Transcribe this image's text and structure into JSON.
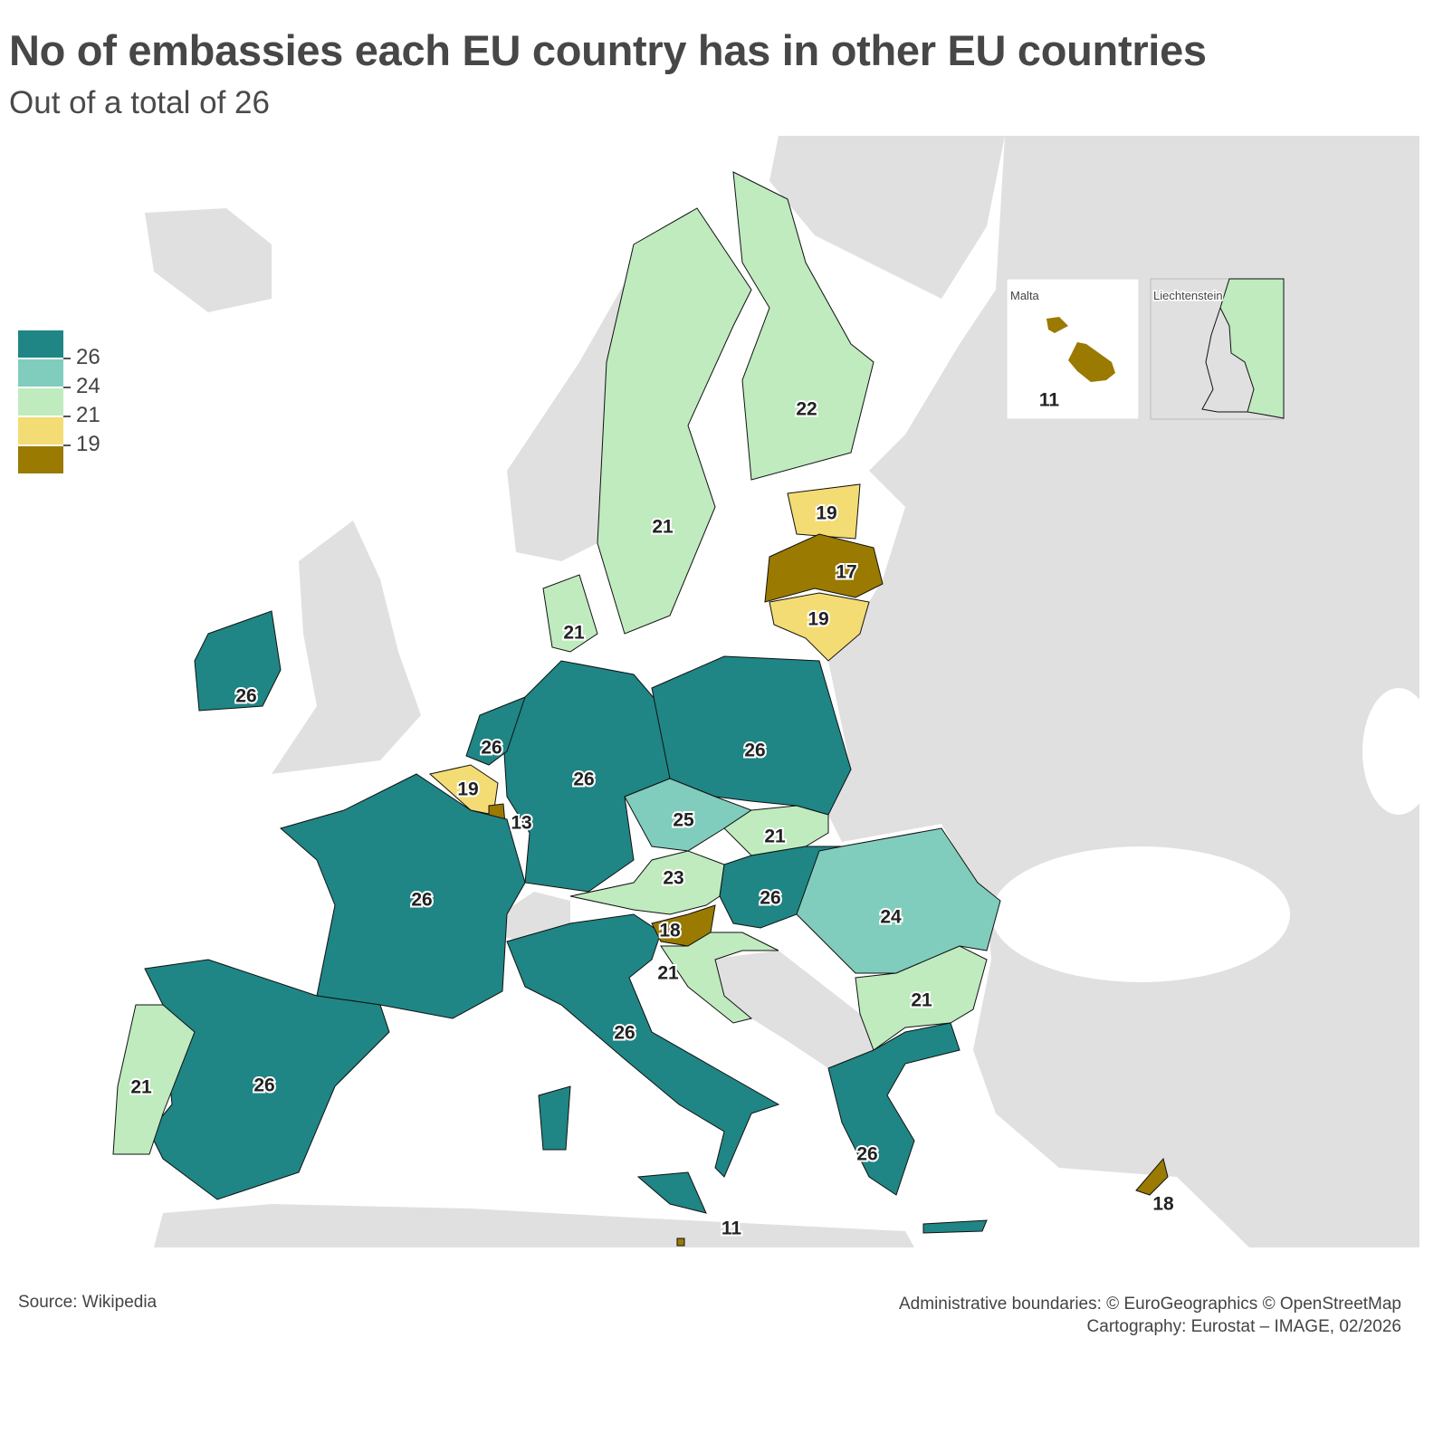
{
  "title": "No of embassies each EU country has in other EU countries",
  "subtitle": "Out of a total of 26",
  "colors": {
    "c26": "#1f8585",
    "c24": "#80cdbd",
    "c21": "#bfebbf",
    "c19": "#f4dc74",
    "clow": "#9a7a00",
    "nonEU": "#e0e0e0"
  },
  "legend": {
    "breaks": [
      "26",
      "24",
      "21",
      "19"
    ]
  },
  "map": {
    "values": {
      "ireland": "26",
      "sweden": "21",
      "finland": "22",
      "estonia": "19",
      "latvia": "17",
      "lithuania": "19",
      "denmark": "21",
      "germany": "26",
      "poland": "26",
      "netherlands": "26",
      "belgium": "19",
      "luxembourg": "13",
      "france": "26",
      "spain": "26",
      "portugal": "21",
      "italy": "26",
      "czechia": "25",
      "slovakia": "21",
      "austria": "23",
      "hungary": "26",
      "slovenia": "18",
      "croatia": "21",
      "romania": "24",
      "bulgaria": "21",
      "greece": "26",
      "cyprus": "18",
      "malta": "11"
    },
    "insets": {
      "malta_title": "Malta",
      "malta_value": "11",
      "liechtenstein_title": "Liechtenstein"
    }
  },
  "footer": {
    "source": "Source: Wikipedia",
    "boundaries": "Administrative boundaries: © EuroGeographics © OpenStreetMap",
    "cartography": "Cartography: Eurostat – IMAGE, 02/2026"
  }
}
